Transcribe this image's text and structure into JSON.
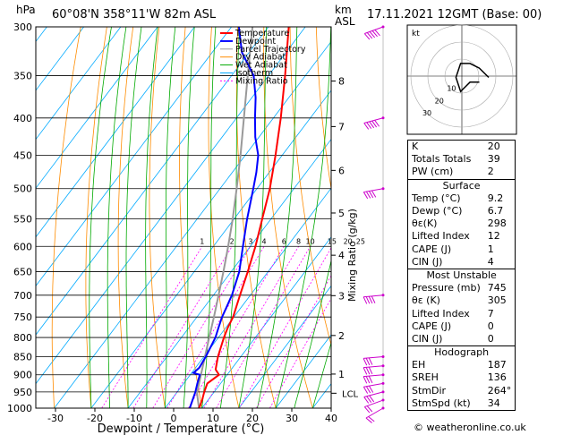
{
  "header": {
    "p_unit": "hPa",
    "location": "60°08'N  358°11'W  82m  ASL",
    "km_label": "km",
    "asl_label": "ASL",
    "datetime": "17.11.2021  12GMT  (Base: 00)"
  },
  "legend": [
    "Temperature",
    "Dewpoint",
    "Parcel Trajectory",
    "Dry Adiabat",
    "Wet Adiabat",
    "Isotherm",
    "Mixing Ratio"
  ],
  "colors": {
    "temperature": "#ff0000",
    "dewpoint": "#0000ff",
    "parcel": "#999999",
    "dry_adiabat": "#ff8c00",
    "wet_adiabat": "#00aa00",
    "isotherm": "#00aaff",
    "mixing_ratio": "#ff00ff",
    "wind": "#cc00cc"
  },
  "chart_data": {
    "type": "skew-T",
    "xlabel": "Dewpoint / Temperature (°C)",
    "ylabel_right": "Mixing Ratio (g/kg)",
    "xlim": [
      -35,
      40
    ],
    "x_ticks": [
      -30,
      -20,
      -10,
      0,
      10,
      20,
      30,
      40
    ],
    "pressure_levels": [
      300,
      350,
      400,
      450,
      500,
      550,
      600,
      650,
      700,
      750,
      800,
      850,
      900,
      950,
      1000
    ],
    "mixing_ratio_labels": [
      "1",
      "2",
      "3",
      "4",
      "6",
      "8",
      "10",
      "15",
      "20",
      "25"
    ],
    "km_ticks": [
      {
        "km": "8",
        "p": 356
      },
      {
        "km": "7",
        "p": 411
      },
      {
        "km": "6",
        "p": 472
      },
      {
        "km": "5",
        "p": 540
      },
      {
        "km": "4",
        "p": 617
      },
      {
        "km": "3",
        "p": 701
      },
      {
        "km": "2",
        "p": 795
      },
      {
        "km": "1",
        "p": 898
      }
    ],
    "lcl_label": "LCL",
    "lcl_p": 954,
    "temperature": [
      [
        1000,
        9.2
      ],
      [
        975,
        8.4
      ],
      [
        950,
        7.3
      ],
      [
        925,
        6.4
      ],
      [
        900,
        7.8
      ],
      [
        885,
        5.8
      ],
      [
        850,
        3.8
      ],
      [
        800,
        1.5
      ],
      [
        775,
        0.5
      ],
      [
        750,
        -0.2
      ],
      [
        700,
        -2.8
      ],
      [
        650,
        -5.5
      ],
      [
        600,
        -8.6
      ],
      [
        550,
        -12.4
      ],
      [
        500,
        -16.5
      ],
      [
        450,
        -21.8
      ],
      [
        400,
        -28.0
      ],
      [
        350,
        -35.5
      ],
      [
        300,
        -44.5
      ]
    ],
    "dewpoint": [
      [
        1000,
        6.7
      ],
      [
        975,
        5.8
      ],
      [
        950,
        4.9
      ],
      [
        925,
        3.7
      ],
      [
        900,
        2.6
      ],
      [
        895,
        0.5
      ],
      [
        880,
        1.0
      ],
      [
        850,
        0.5
      ],
      [
        800,
        -0.8
      ],
      [
        775,
        -2.0
      ],
      [
        750,
        -3.2
      ],
      [
        700,
        -5.0
      ],
      [
        650,
        -7.8
      ],
      [
        600,
        -12.0
      ],
      [
        550,
        -16.5
      ],
      [
        500,
        -21.0
      ],
      [
        475,
        -23.5
      ],
      [
        450,
        -26.5
      ],
      [
        425,
        -31.0
      ],
      [
        400,
        -35.0
      ],
      [
        375,
        -39.0
      ],
      [
        350,
        -44.0
      ],
      [
        325,
        -52.0
      ],
      [
        300,
        -58.0
      ]
    ],
    "parcel": [
      [
        1000,
        9.2
      ],
      [
        954,
        5.6
      ],
      [
        900,
        2.9
      ],
      [
        850,
        0.3
      ],
      [
        800,
        -2.5
      ],
      [
        750,
        -5.4
      ],
      [
        700,
        -8.6
      ],
      [
        650,
        -12.1
      ],
      [
        600,
        -16.0
      ],
      [
        550,
        -20.4
      ],
      [
        500,
        -25.5
      ],
      [
        450,
        -31.3
      ],
      [
        400,
        -38.0
      ],
      [
        350,
        -45.6
      ],
      [
        300,
        -54.3
      ]
    ],
    "wind_barbs": [
      {
        "p": 300,
        "dir": 250,
        "spd": 50
      },
      {
        "p": 400,
        "dir": 255,
        "spd": 45
      },
      {
        "p": 500,
        "dir": 260,
        "spd": 40
      },
      {
        "p": 700,
        "dir": 265,
        "spd": 35
      },
      {
        "p": 850,
        "dir": 265,
        "spd": 30
      },
      {
        "p": 875,
        "dir": 265,
        "spd": 30
      },
      {
        "p": 900,
        "dir": 265,
        "spd": 30
      },
      {
        "p": 925,
        "dir": 260,
        "spd": 30
      },
      {
        "p": 950,
        "dir": 255,
        "spd": 25
      },
      {
        "p": 975,
        "dir": 250,
        "spd": 20
      },
      {
        "p": 1000,
        "dir": 240,
        "spd": 15
      }
    ]
  },
  "hodograph": {
    "unit": "kt",
    "ring_labels": [
      "10",
      "20",
      "30"
    ],
    "points": [
      [
        0,
        -10
      ],
      [
        -10,
        -20
      ],
      [
        -20,
        -25
      ],
      [
        -30,
        -25
      ],
      [
        -35,
        -10
      ],
      [
        -30,
        5
      ],
      [
        -25,
        0
      ],
      [
        -20,
        -5
      ],
      [
        -10,
        -5
      ]
    ]
  },
  "indices": {
    "rows": [
      [
        "K",
        "20"
      ],
      [
        "Totals Totals",
        "39"
      ],
      [
        "PW (cm)",
        "2"
      ]
    ],
    "surface": {
      "title": "Surface",
      "rows": [
        [
          "Temp (°C)",
          "9.2"
        ],
        [
          "Dewp (°C)",
          "6.7"
        ],
        [
          "θε(K)",
          "298"
        ],
        [
          "Lifted Index",
          "12"
        ],
        [
          "CAPE (J)",
          "1"
        ],
        [
          "CIN (J)",
          "4"
        ]
      ]
    },
    "most_unstable": {
      "title": "Most Unstable",
      "rows": [
        [
          "Pressure (mb)",
          "745"
        ],
        [
          "θε (K)",
          "305"
        ],
        [
          "Lifted Index",
          "7"
        ],
        [
          "CAPE (J)",
          "0"
        ],
        [
          "CIN (J)",
          "0"
        ]
      ]
    },
    "hodograph": {
      "title": "Hodograph",
      "rows": [
        [
          "EH",
          "187"
        ],
        [
          "SREH",
          "136"
        ],
        [
          "StmDir",
          "264°"
        ],
        [
          "StmSpd (kt)",
          "34"
        ]
      ]
    }
  },
  "credit": "© weatheronline.co.uk"
}
